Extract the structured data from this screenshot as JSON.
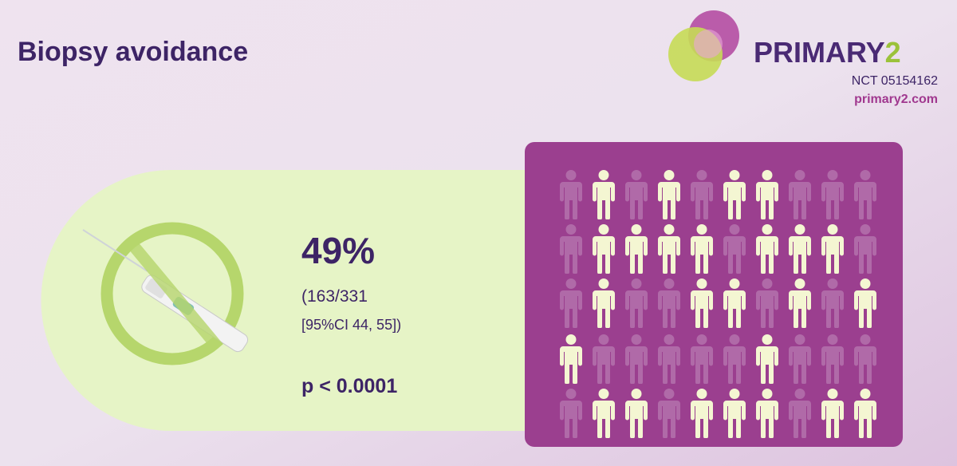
{
  "header": {
    "title": "Biopsy avoidance",
    "logo_name": "PRIMARY",
    "logo_number": "2",
    "trial_id": "NCT 05154162",
    "website": "primary2.com"
  },
  "result": {
    "percentage": "49%",
    "ratio": "(163/331",
    "ci": "[95%CI 44, 55])",
    "p_value": "p < 0.0001"
  }
}
